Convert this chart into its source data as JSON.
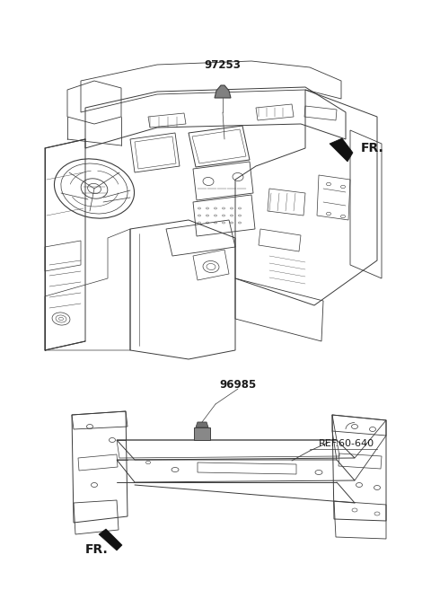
{
  "background_color": "#ffffff",
  "fig_width": 4.8,
  "fig_height": 6.57,
  "dpi": 100,
  "part1_label": "97253",
  "part2_label": "96985",
  "ref_label": "REF.60-640",
  "fr_label": "FR.",
  "line_color": "#3a3a3a",
  "line_width": 0.7,
  "thin_line": 0.4,
  "text_color": "#1a1a1a",
  "arrow_color": "#111111",
  "sensor_fill": "#888888",
  "ref_text_color": "#111111"
}
